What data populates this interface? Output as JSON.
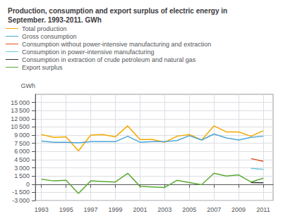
{
  "chart_data": {
    "type": "line",
    "title": "Production, consumption and export surplus of electric energy in\nSeptember. 1993-2011. GWh",
    "ylabel": "GWh",
    "x": [
      1993,
      1994,
      1995,
      1996,
      1997,
      1998,
      1999,
      2000,
      2001,
      2002,
      2003,
      2004,
      2005,
      2006,
      2007,
      2008,
      2009,
      2010,
      2011
    ],
    "series": [
      {
        "name": "Total production",
        "color": "#f5a800",
        "values": [
          9100,
          8600,
          8700,
          6100,
          9000,
          9100,
          8700,
          10700,
          8200,
          8200,
          7700,
          8800,
          9100,
          8100,
          10700,
          9600,
          9600,
          8800,
          9800
        ]
      },
      {
        "name": "Gross consumption",
        "color": "#4da6d5",
        "values": [
          7900,
          7700,
          7700,
          7600,
          7800,
          7800,
          7800,
          8800,
          7700,
          7800,
          7800,
          8000,
          8900,
          8100,
          9200,
          8500,
          8100,
          8600,
          8800
        ]
      },
      {
        "name": "Consumption without power-intensive manufacturing and extraction",
        "color": "#e05020",
        "values": [
          null,
          null,
          null,
          null,
          null,
          null,
          null,
          null,
          null,
          null,
          null,
          null,
          null,
          null,
          null,
          null,
          null,
          4700,
          4200
        ]
      },
      {
        "name": "Consumption in power-intensive manufacturing",
        "color": "#70c8d8",
        "values": [
          null,
          null,
          null,
          null,
          null,
          null,
          null,
          null,
          null,
          null,
          null,
          null,
          null,
          null,
          null,
          null,
          null,
          2900,
          2700
        ]
      },
      {
        "name": "Consumption in extraction of crude petroleum and natural gas",
        "color": "#303030",
        "values": [
          null,
          null,
          null,
          null,
          null,
          null,
          null,
          null,
          null,
          null,
          null,
          null,
          null,
          null,
          null,
          null,
          null,
          300,
          250
        ]
      },
      {
        "name": "Export surplus",
        "color": "#5aaa32",
        "values": [
          900,
          600,
          700,
          -1700,
          600,
          500,
          400,
          2000,
          -400,
          -500,
          -600,
          700,
          300,
          -100,
          2000,
          1500,
          1700,
          400,
          1100
        ]
      }
    ],
    "xlim": [
      1992.5,
      2011.8
    ],
    "xticks": [
      1993,
      1995,
      1997,
      1999,
      2001,
      2003,
      2005,
      2007,
      2009,
      2011
    ],
    "ylim": [
      -3000,
      16500
    ],
    "yticks": [
      {
        "value": -3000,
        "label": "-3 000"
      },
      {
        "value": -1500,
        "label": "-1 500"
      },
      0,
      {
        "value": 1500,
        "label": "1 500"
      },
      {
        "value": 3000,
        "label": "3 000"
      },
      {
        "value": 4500,
        "label": "4 500"
      },
      {
        "value": 6000,
        "label": "6 000"
      },
      {
        "value": 7500,
        "label": "7 500"
      },
      {
        "value": 9000,
        "label": "9 000"
      },
      {
        "value": 10500,
        "label": "10 500"
      },
      {
        "value": 12000,
        "label": "12 000"
      },
      {
        "value": 13500,
        "label": "13 500"
      },
      {
        "value": 15000,
        "label": "15 000"
      }
    ],
    "grid": true,
    "legend": "upper left"
  }
}
